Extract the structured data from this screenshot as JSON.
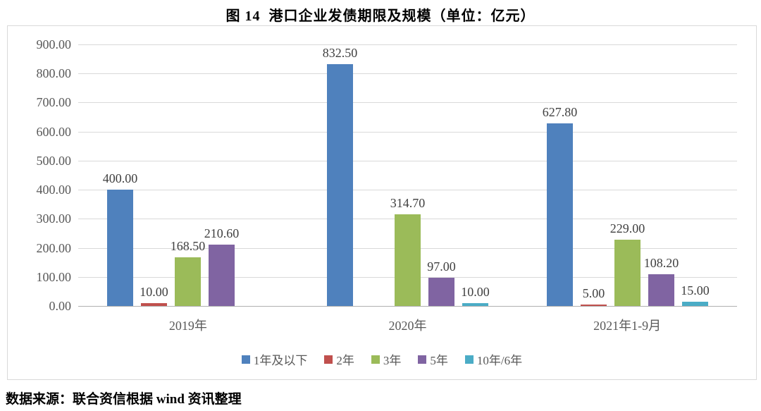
{
  "chart_data": {
    "type": "bar",
    "title": "图 14  港口企业发债期限及规模（单位：亿元）",
    "categories": [
      "2019年",
      "2020年",
      "2021年1-9月"
    ],
    "series": [
      {
        "name": "1年及以下",
        "color": "#4F81BD",
        "values": [
          400.0,
          832.5,
          627.8
        ]
      },
      {
        "name": "2年",
        "color": "#C0504D",
        "values": [
          10.0,
          null,
          5.0
        ]
      },
      {
        "name": "3年",
        "color": "#9BBB59",
        "values": [
          168.5,
          314.7,
          229.0
        ]
      },
      {
        "name": "5年",
        "color": "#8064A2",
        "values": [
          210.6,
          97.0,
          108.2
        ]
      },
      {
        "name": "10年/6年",
        "color": "#4BACC6",
        "values": [
          null,
          10.0,
          15.0
        ]
      }
    ],
    "ylim": [
      0,
      900
    ],
    "ytick_step": 100,
    "ytick_format_decimals": 2,
    "data_label_decimals": 2,
    "grid": true,
    "legend_position": "bottom",
    "source_note": "数据来源：联合资信根据 wind 资讯整理"
  }
}
